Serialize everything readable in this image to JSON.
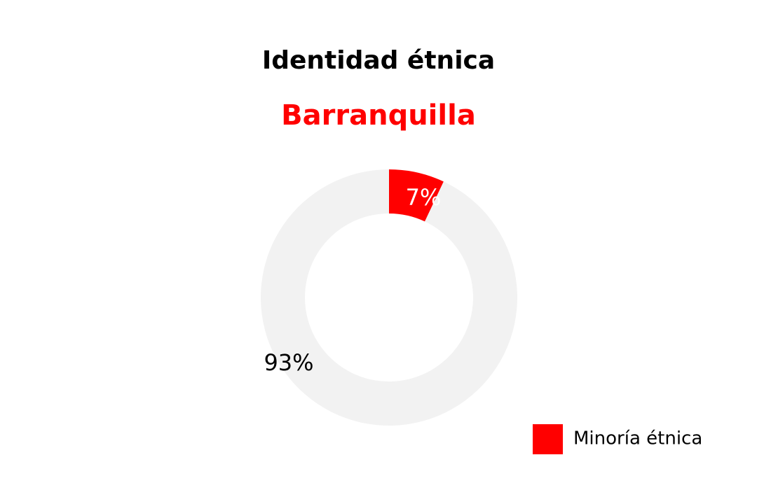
{
  "chart_data": {
    "type": "pie",
    "title": "Identidad étnica",
    "subtitle": "Barranquilla",
    "categories": [
      "Minoría étnica",
      null
    ],
    "values": [
      7,
      93
    ],
    "value_labels": [
      "7%",
      "93%"
    ],
    "colors": [
      "#ff0000",
      "#f2f2f2"
    ],
    "label_colors": [
      "#ffffff",
      "#000000"
    ],
    "legend": "bottom-right"
  }
}
